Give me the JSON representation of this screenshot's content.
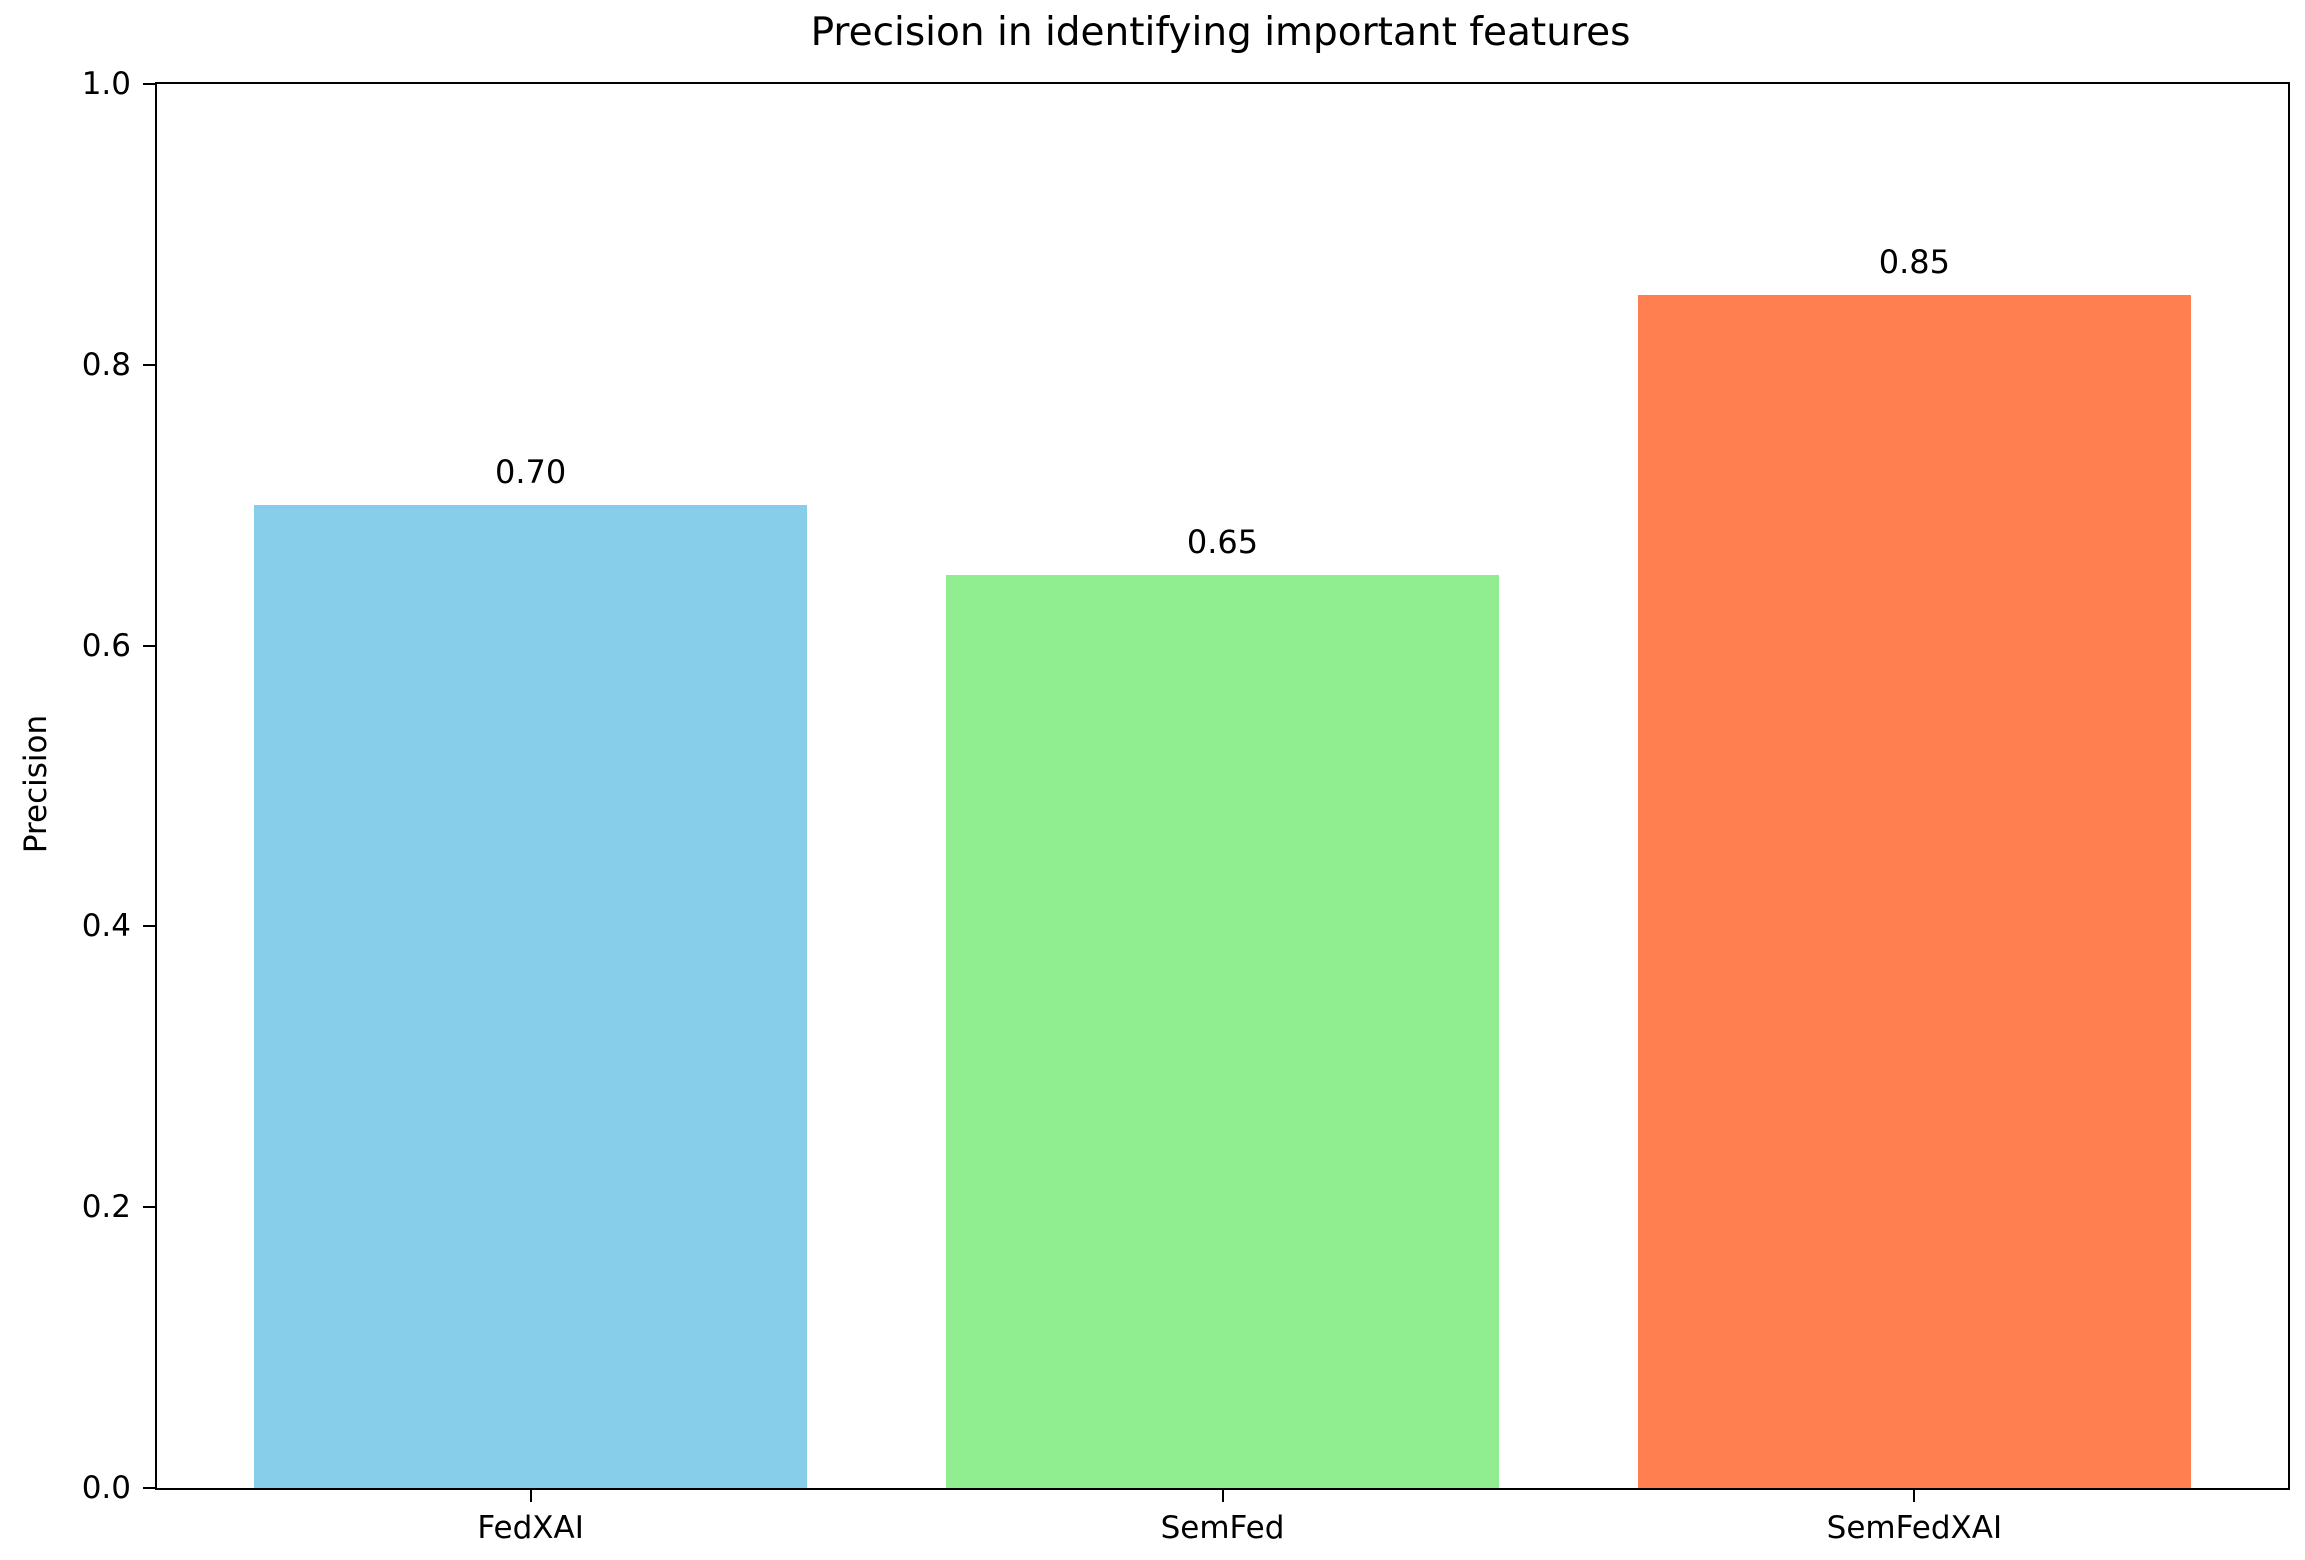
{
  "chart_data": {
    "type": "bar",
    "title": "Precision in identifying important features",
    "xlabel": "",
    "ylabel": "Precision",
    "categories": [
      "FedXAI",
      "SemFed",
      "SemFedXAI"
    ],
    "values": [
      0.7,
      0.65,
      0.85
    ],
    "bar_labels": [
      "0.70",
      "0.65",
      "0.85"
    ],
    "bar_colors": [
      "#87CEEB",
      "#90EE90",
      "#FF7F50"
    ],
    "ylim": [
      0.0,
      1.0
    ],
    "ytick_labels": [
      "0.0",
      "0.2",
      "0.4",
      "0.6",
      "0.8",
      "1.0"
    ],
    "ytick_values": [
      0.0,
      0.2,
      0.4,
      0.6,
      0.8,
      1.0
    ],
    "grid": false,
    "legend": "none",
    "bar_width_fraction": 0.8,
    "spine_color": "#000000",
    "background_color": "#ffffff"
  }
}
